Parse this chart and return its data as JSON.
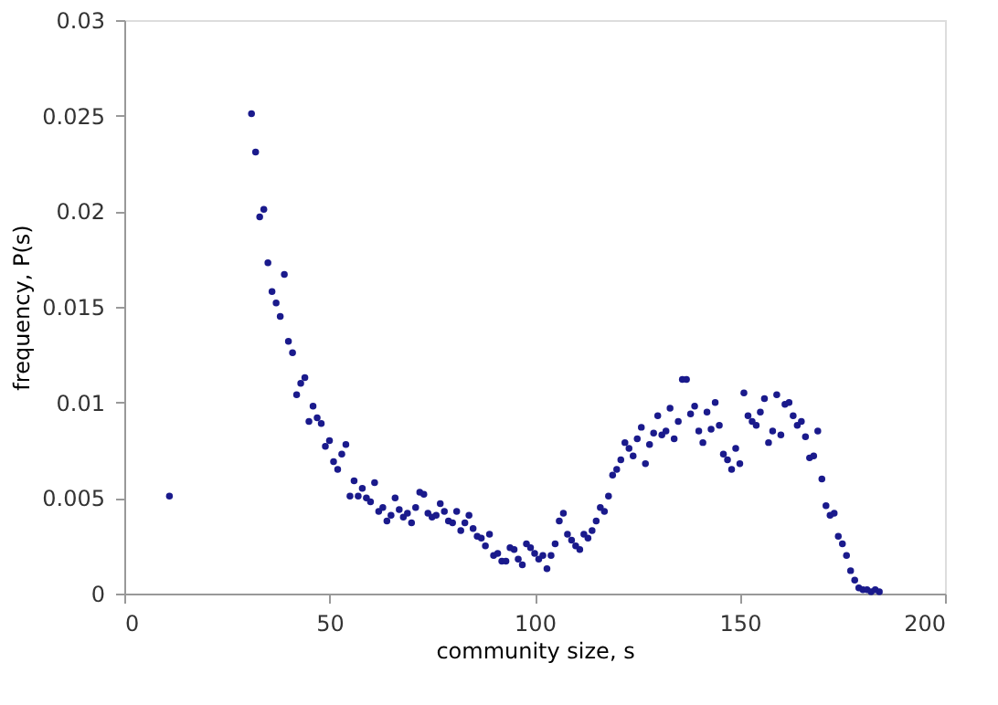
{
  "chart_data": {
    "type": "scatter",
    "xlabel": "community size, s",
    "ylabel": "frequency, P(s)",
    "xlim": [
      0,
      200
    ],
    "xticks": [
      0,
      50,
      100,
      150,
      200
    ],
    "ylim": [
      0,
      0.03
    ],
    "yticks": [
      0,
      0.005,
      0.01,
      0.015,
      0.02,
      0.025,
      0.03
    ],
    "grid": false,
    "marker": "circle",
    "series": [
      {
        "color": "#1a1a8c",
        "x": [
          11,
          31,
          32,
          33,
          34,
          35,
          36,
          37,
          38,
          39,
          40,
          41,
          42,
          43,
          44,
          45,
          46,
          47,
          48,
          49,
          50,
          51,
          52,
          53,
          54,
          55,
          56,
          57,
          58,
          59,
          60,
          61,
          62,
          63,
          64,
          65,
          66,
          67,
          68,
          69,
          70,
          71,
          72,
          73,
          74,
          75,
          76,
          77,
          78,
          79,
          80,
          81,
          82,
          83,
          84,
          85,
          86,
          87,
          88,
          89,
          90,
          91,
          92,
          93,
          94,
          95,
          96,
          97,
          98,
          99,
          100,
          101,
          102,
          103,
          104,
          105,
          106,
          107,
          108,
          109,
          110,
          111,
          112,
          113,
          114,
          115,
          116,
          117,
          118,
          119,
          120,
          121,
          122,
          123,
          124,
          125,
          126,
          127,
          128,
          129,
          130,
          131,
          132,
          133,
          134,
          135,
          136,
          137,
          138,
          139,
          140,
          141,
          142,
          143,
          144,
          145,
          146,
          147,
          148,
          149,
          150,
          151,
          152,
          153,
          154,
          155,
          156,
          157,
          158,
          159,
          160,
          161,
          162,
          163,
          164,
          165,
          166,
          167,
          168,
          169,
          170,
          171,
          172,
          173,
          174,
          175,
          176,
          177,
          178,
          179,
          180,
          181,
          182,
          183,
          184
        ],
        "values": [
          0.0051,
          0.0251,
          0.0231,
          0.0197,
          0.0201,
          0.0173,
          0.0158,
          0.0152,
          0.0145,
          0.0167,
          0.0132,
          0.0126,
          0.0104,
          0.011,
          0.0113,
          0.009,
          0.0098,
          0.0092,
          0.0089,
          0.0077,
          0.008,
          0.0069,
          0.0065,
          0.0073,
          0.0078,
          0.0051,
          0.0059,
          0.0051,
          0.0055,
          0.005,
          0.0048,
          0.0058,
          0.0043,
          0.0045,
          0.0038,
          0.0041,
          0.005,
          0.0044,
          0.004,
          0.0042,
          0.0037,
          0.0045,
          0.0053,
          0.0052,
          0.0042,
          0.004,
          0.0041,
          0.0047,
          0.0043,
          0.0038,
          0.0037,
          0.0043,
          0.0033,
          0.0037,
          0.0041,
          0.0034,
          0.003,
          0.0029,
          0.0025,
          0.0031,
          0.002,
          0.0021,
          0.0017,
          0.0017,
          0.0024,
          0.0023,
          0.0018,
          0.0015,
          0.0026,
          0.0024,
          0.0021,
          0.0018,
          0.002,
          0.0013,
          0.002,
          0.0026,
          0.0038,
          0.0042,
          0.0031,
          0.0028,
          0.0025,
          0.0023,
          0.0031,
          0.0029,
          0.0033,
          0.0038,
          0.0045,
          0.0043,
          0.0051,
          0.0062,
          0.0065,
          0.007,
          0.0079,
          0.0076,
          0.0072,
          0.0081,
          0.0087,
          0.0068,
          0.0078,
          0.0084,
          0.0093,
          0.0083,
          0.0085,
          0.0097,
          0.0081,
          0.009,
          0.0112,
          0.0112,
          0.0094,
          0.0098,
          0.0085,
          0.0079,
          0.0095,
          0.0086,
          0.01,
          0.0088,
          0.0073,
          0.007,
          0.0065,
          0.0076,
          0.0068,
          0.0105,
          0.0093,
          0.009,
          0.0088,
          0.0095,
          0.0102,
          0.0079,
          0.0085,
          0.0104,
          0.0083,
          0.0099,
          0.01,
          0.0093,
          0.0088,
          0.009,
          0.0082,
          0.0071,
          0.0072,
          0.0085,
          0.006,
          0.0046,
          0.0041,
          0.0042,
          0.003,
          0.0026,
          0.002,
          0.0012,
          0.0007,
          0.0003,
          0.0002,
          0.0002,
          0.0001,
          0.0002,
          0.0001
        ]
      }
    ]
  }
}
